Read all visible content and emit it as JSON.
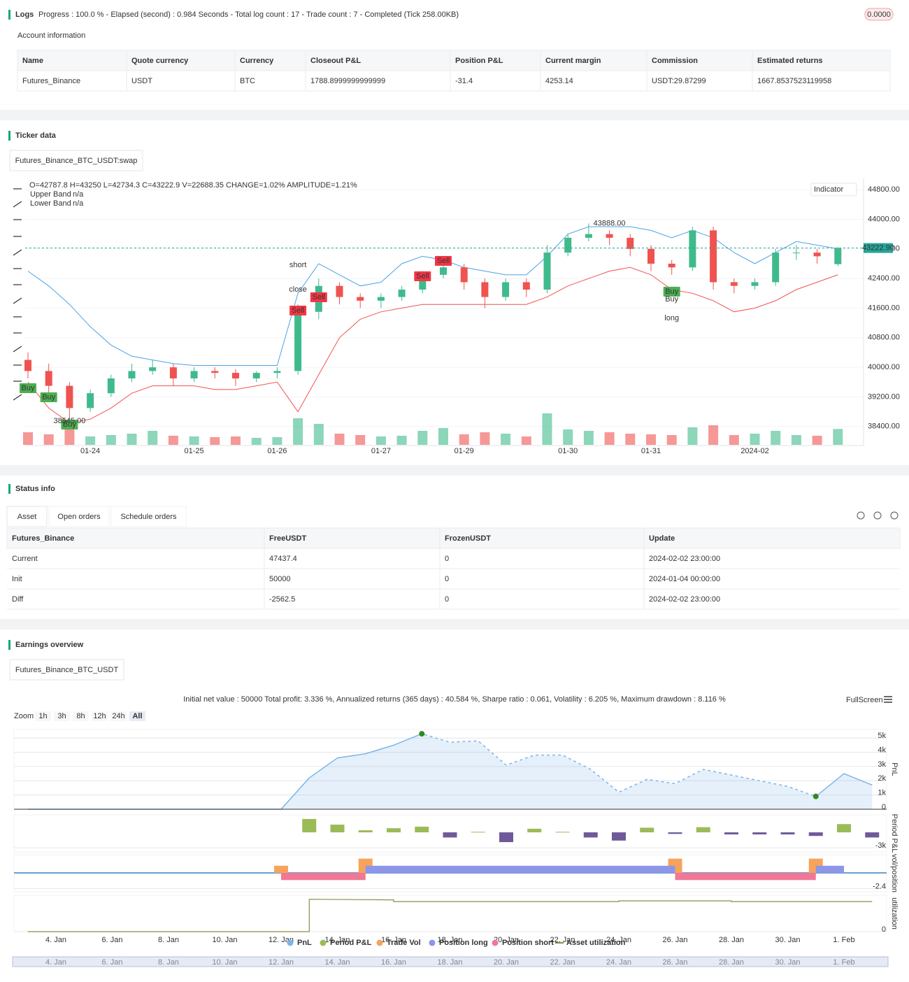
{
  "logs": {
    "title": "Logs",
    "progress": "Progress : 100.0 % - Elapsed (second) : 0.984  Seconds - Total log count : 17 - Trade count : 7 - Completed (Tick 258.00KB)",
    "badge": "0.0000"
  },
  "account": {
    "title": "Account information",
    "columns": [
      "Name",
      "Quote currency",
      "Currency",
      "Closeout P&L",
      "Position P&L",
      "Current margin",
      "Commission",
      "Estimated returns"
    ],
    "rows": [
      [
        "Futures_Binance",
        "USDT",
        "BTC",
        "1788.8999999999999",
        "-31.4",
        "4253.14",
        "USDT:29.87299",
        "1667.8537523119958"
      ]
    ]
  },
  "ticker": {
    "title": "Ticker data",
    "tab": "Futures_Binance_BTC_USDT:swap",
    "legend_ohlc": "O=42787.8 H=43250 L=42734.3 C=43222.9 V=22688.35 CHANGE=1.02% AMPLITUDE=1.21%",
    "indicator_button": "Indicator",
    "last_price_label": "43222.90",
    "chart_data": {
      "type": "candlestick",
      "categories": [
        null,
        null,
        null,
        "01-24",
        null,
        null,
        null,
        null,
        "01-25",
        null,
        null,
        null,
        "01-26",
        null,
        null,
        null,
        null,
        "01-27",
        null,
        null,
        null,
        "01-29",
        null,
        null,
        null,
        null,
        "01-30",
        null,
        null,
        null,
        "01-31",
        null,
        null,
        null,
        null,
        "2024-02",
        null,
        null,
        null,
        null
      ],
      "open": [
        40200,
        39900,
        39500,
        38900,
        39300,
        39700,
        39900,
        40000,
        39700,
        39900,
        39850,
        39700,
        39850,
        39900,
        41500,
        42200,
        41900,
        41800,
        41900,
        42100,
        42500,
        42700,
        42300,
        41900,
        42300,
        42100,
        43100,
        43500,
        43600,
        43500,
        43200,
        42800,
        42700,
        43700,
        42300,
        42200,
        42300,
        43100,
        43100,
        42787.8
      ],
      "high": [
        40400,
        40100,
        39600,
        39400,
        39800,
        40100,
        40200,
        40100,
        40000,
        40000,
        39950,
        39900,
        40000,
        41700,
        42400,
        42300,
        42000,
        42000,
        42200,
        42600,
        42900,
        42800,
        42400,
        42400,
        42400,
        43300,
        43600,
        43888,
        43700,
        43600,
        43300,
        42900,
        43800,
        43800,
        42400,
        42400,
        43200,
        43300,
        43200,
        43250
      ],
      "low": [
        39700,
        39300,
        38545,
        38800,
        39200,
        39600,
        39800,
        39500,
        39600,
        39700,
        39500,
        39600,
        39700,
        39800,
        41300,
        41700,
        41600,
        41600,
        41800,
        42000,
        42400,
        42100,
        41600,
        41800,
        41900,
        42000,
        43000,
        43400,
        43300,
        43000,
        42600,
        42500,
        42600,
        42100,
        42000,
        42100,
        42200,
        42900,
        42800,
        42734.3
      ],
      "close": [
        39900,
        39500,
        38900,
        39300,
        39700,
        39900,
        40000,
        39700,
        39900,
        39850,
        39700,
        39850,
        39900,
        41500,
        42200,
        41900,
        41800,
        41900,
        42100,
        42500,
        42700,
        42300,
        41900,
        42300,
        42100,
        43100,
        43500,
        43600,
        43500,
        43200,
        42800,
        42700,
        43700,
        42300,
        42200,
        42300,
        43100,
        43100,
        43000,
        43222.9
      ],
      "volume": [
        18000,
        15000,
        30000,
        12000,
        14000,
        16000,
        20000,
        13000,
        12000,
        11000,
        12000,
        10000,
        11000,
        38000,
        30000,
        16000,
        14000,
        12000,
        13000,
        20000,
        24000,
        15000,
        18000,
        16000,
        12000,
        45000,
        22000,
        20000,
        18000,
        16000,
        15000,
        14000,
        25000,
        28000,
        14000,
        16000,
        20000,
        14000,
        13000,
        22688.35
      ],
      "up_color": "#3fba8c",
      "down_color": "#ef5350",
      "series": [
        {
          "name": "Upper Band",
          "color": "#4aa3e8",
          "legend_value": "n/a",
          "legend_value_color": "#f7a21b",
          "values": [
            42600,
            42200,
            41700,
            41100,
            40600,
            40300,
            40200,
            40100,
            40050,
            40050,
            40050,
            40050,
            40050,
            42000,
            42800,
            42500,
            42200,
            42300,
            42800,
            43000,
            42900,
            42700,
            42600,
            42500,
            42500,
            43000,
            43600,
            43800,
            43800,
            43800,
            43700,
            43500,
            43700,
            43500,
            43100,
            42800,
            43100,
            43400,
            43300,
            43200
          ]
        },
        {
          "name": "Lower Band",
          "color": "#ef5350",
          "legend_value": "n/a",
          "legend_value_color": "#9c27b0",
          "values": [
            39600,
            38900,
            38500,
            38600,
            38900,
            39300,
            39500,
            39500,
            39500,
            39400,
            39400,
            39500,
            39600,
            38800,
            39800,
            40800,
            41300,
            41500,
            41600,
            41700,
            41700,
            41700,
            41700,
            41700,
            41700,
            41900,
            42200,
            42400,
            42600,
            42700,
            42500,
            42100,
            42000,
            41800,
            41500,
            41600,
            41800,
            42100,
            42300,
            42500
          ]
        }
      ],
      "annotations": [
        {
          "text": "Buy",
          "index": 0,
          "price": 39436,
          "style": "tag",
          "color": "#4caf50"
        },
        {
          "text": "Buy",
          "index": 1,
          "price": 39190,
          "style": "tag",
          "color": "#4caf50"
        },
        {
          "text": "Buy",
          "index": 2,
          "price": 38454,
          "style": "tag",
          "color": "#4caf50"
        },
        {
          "text": "38545.00",
          "index": 2,
          "price": 38545,
          "style": "note",
          "color": "#999999"
        },
        {
          "text": "Sell",
          "index": 13,
          "price": 41534,
          "style": "tag",
          "color": "#f23645"
        },
        {
          "text": "Sell",
          "index": 14,
          "price": 41893,
          "style": "tag",
          "color": "#f23645"
        },
        {
          "text": "short",
          "index": 13,
          "price": 42762,
          "style": "note",
          "color": "#f23645"
        },
        {
          "text": "close",
          "index": 13,
          "price": 42100,
          "style": "note",
          "color": "#c026d3"
        },
        {
          "text": "Sell",
          "index": 19,
          "price": 42460,
          "style": "tag",
          "color": "#f23645"
        },
        {
          "text": "Sell",
          "index": 20,
          "price": 42875,
          "style": "tag",
          "color": "#f23645"
        },
        {
          "text": "43888.00",
          "index": 28,
          "price": 43888,
          "style": "note",
          "color": "#999999"
        },
        {
          "text": "Buy",
          "index": 31,
          "price": 42044,
          "style": "tag",
          "color": "#4caf50"
        },
        {
          "text": "Buy",
          "index": 31,
          "price": 41836,
          "style": "note",
          "color": "#2962ff"
        },
        {
          "text": "long",
          "index": 31,
          "price": 41326,
          "style": "note",
          "color": "#2962ff"
        }
      ],
      "ylim": [
        38000,
        45200
      ],
      "yticks": [
        {
          "value": 38400,
          "label": "38400.00"
        },
        {
          "value": 39200,
          "label": "39200.00"
        },
        {
          "value": 40000,
          "label": "40000.00"
        },
        {
          "value": 40800,
          "label": "40800.00"
        },
        {
          "value": 41600,
          "label": "41600.00"
        },
        {
          "value": 42400,
          "label": "42400.00"
        },
        {
          "value": 43200,
          "label": "43200.00"
        },
        {
          "value": 44000,
          "label": "44000.00"
        },
        {
          "value": 44800,
          "label": "44800.00"
        }
      ]
    }
  },
  "status": {
    "title": "Status info",
    "tabs": [
      "Asset",
      "Open orders",
      "Schedule orders"
    ],
    "columns": [
      "Futures_Binance",
      "FreeUSDT",
      "FrozenUSDT",
      "Update"
    ],
    "rows": [
      [
        "Current",
        "47437.4",
        "0",
        "2024-02-02 23:00:00"
      ],
      [
        "Init",
        "50000",
        "0",
        "2024-01-04 00:00:00"
      ],
      [
        "Diff",
        "-2562.5",
        "0",
        "2024-02-02 23:00:00"
      ]
    ]
  },
  "earnings": {
    "title": "Earnings overview",
    "tab": "Futures_Binance_BTC_USDT",
    "summary": "Initial net value : 50000 Total profit: 3.336 %, Annualized returns (365 days) : 40.584 %, Sharpe ratio : 0.061, Volatility : 6.205 %, Maximum drawdown : 8.116 %",
    "fullscreen": "FullScreen",
    "zoom_label": "Zoom",
    "zoom_buttons": [
      "1h",
      "3h",
      "8h",
      "12h",
      "24h",
      "All"
    ],
    "xticks": [
      "4. Jan",
      "6. Jan",
      "8. Jan",
      "10. Jan",
      "12. Jan",
      "14. Jan",
      "16. Jan",
      "18. Jan",
      "20. Jan",
      "22. Jan",
      "24. Jan",
      "26. Jan",
      "28. Jan",
      "30. Jan",
      "1. Feb"
    ],
    "chart_data": [
      {
        "type": "area",
        "ylabel": "PnL",
        "ylim": [
          0,
          5600
        ],
        "yticks": [
          0,
          {
            "value": 1000,
            "label": "1k"
          },
          {
            "value": 2000,
            "label": "2k"
          },
          {
            "value": 3000,
            "label": "3k"
          },
          {
            "value": 4000,
            "label": "4k"
          },
          {
            "value": 5000,
            "label": "5k"
          }
        ],
        "series": [
          {
            "name": "PnL",
            "color": "#7cb5ec",
            "x": [
              "3. Jan",
              "12. Jan",
              "13. Jan",
              "14. Jan",
              "15. Jan",
              "16. Jan",
              "17. Jan",
              "18. Jan",
              "19. Jan",
              "20. Jan",
              "21. Jan",
              "22. Jan",
              "23. Jan",
              "24. Jan",
              "25. Jan",
              "26. Jan",
              "27. Jan",
              "28. Jan",
              "29. Jan",
              "30. Jan",
              "31. Jan",
              "1. Feb",
              "2. Feb"
            ],
            "values": [
              0,
              0,
              2200,
              3600,
              3900,
              4500,
              5300,
              4700,
              4800,
              3100,
              3800,
              3800,
              2800,
              1200,
              2100,
              1800,
              2800,
              2400,
              2000,
              1600,
              900,
              2500,
              1700
            ]
          }
        ]
      },
      {
        "type": "bar",
        "ylabel": "Period P&L",
        "ylim": [
          -3800,
          3400
        ],
        "yticks": [
          {
            "value": -3000,
            "label": "-3k"
          }
        ],
        "series": [
          {
            "name": "Period P&L",
            "color": "#9bbb59",
            "negative_color": "#6f5a99",
            "x": [
              "13. Jan",
              "14. Jan",
              "15. Jan",
              "16. Jan",
              "17. Jan",
              "18. Jan",
              "19. Jan",
              "20. Jan",
              "21. Jan",
              "22. Jan",
              "23. Jan",
              "24. Jan",
              "25. Jan",
              "26. Jan",
              "27. Jan",
              "28. Jan",
              "29. Jan",
              "30. Jan",
              "31. Jan",
              "1. Feb",
              "2. Feb"
            ],
            "values": [
              2600,
              1500,
              400,
              800,
              1100,
              -1000,
              100,
              -1900,
              700,
              100,
              -1000,
              -1600,
              900,
              -300,
              1000,
              -400,
              -400,
              -400,
              -700,
              1600,
              -1000
            ]
          }
        ]
      },
      {
        "type": "range-bar",
        "ylabel": "vol/position",
        "ylim": [
          -2.9,
          2.8
        ],
        "yticks": [
          -2.4
        ],
        "zero_line_color": "#3a7fc4",
        "series": [
          {
            "name": "Trade Vol",
            "color": "#f7a35c",
            "x": [
              "12. Jan",
              "15. Jan",
              "26. Jan",
              "31. Jan"
            ],
            "values": [
              1.1,
              2.2,
              2.2,
              2.2
            ]
          },
          {
            "name": "Position long",
            "color": "#8d96e8",
            "from": [
              "15. Jan",
              "31. Jan"
            ],
            "to": [
              "26. Jan",
              "1. Feb"
            ],
            "values": [
              1.1,
              1.1
            ]
          },
          {
            "name": "Position short",
            "color": "#f07896",
            "from": [
              "12. Jan",
              "26. Jan"
            ],
            "to": [
              "15. Jan",
              "31. Jan"
            ],
            "values": [
              -1.1,
              -1.1
            ]
          }
        ]
      },
      {
        "type": "line",
        "ylabel": "utilization",
        "ylim": [
          0,
          1.1
        ],
        "yticks": [
          0
        ],
        "series": [
          {
            "name": "Asset utilization",
            "color": "#8d8b47",
            "x": [
              "3. Jan",
              "13. Jan",
              "13. Jan",
              "16. Jan",
              "16. Jan",
              "24. Jan",
              "24. Jan",
              "28. Jan",
              "28. Jan",
              "2. Feb"
            ],
            "values": [
              0,
              0,
              0.98,
              0.96,
              0.91,
              0.91,
              0.93,
              0.93,
              0.91,
              0.91
            ]
          }
        ]
      }
    ]
  }
}
